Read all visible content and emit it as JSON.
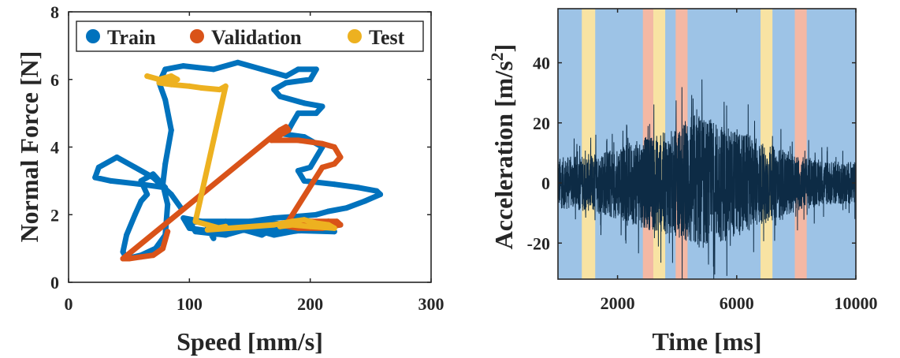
{
  "chart_data": [
    {
      "type": "scatter",
      "xlabel": "Speed [mm/s]",
      "ylabel": "Normal Force [N]",
      "xlim": [
        0,
        300
      ],
      "ylim": [
        0,
        8
      ],
      "xticks": [
        "0",
        "100",
        "200",
        "300"
      ],
      "yticks": [
        "0",
        "2",
        "4",
        "6",
        "8"
      ],
      "legend": {
        "placement": "top",
        "entries": [
          "Train",
          "Validation",
          "Test"
        ]
      },
      "series": [
        {
          "name": "Train",
          "color": "#0072BD",
          "points": [
            [
              93,
              2.2
            ],
            [
              85,
              2.6
            ],
            [
              70,
              3.1
            ],
            [
              55,
              3.4
            ],
            [
              40,
              3.7
            ],
            [
              25,
              3.4
            ],
            [
              22,
              3.1
            ],
            [
              35,
              3.0
            ],
            [
              60,
              2.9
            ],
            [
              80,
              2.8
            ],
            [
              70,
              3.2
            ],
            [
              60,
              3.0
            ],
            [
              65,
              2.6
            ],
            [
              60,
              2.4
            ],
            [
              55,
              2.0
            ],
            [
              48,
              1.4
            ],
            [
              45,
              0.9
            ],
            [
              48,
              0.7
            ],
            [
              60,
              0.8
            ],
            [
              72,
              1.0
            ],
            [
              80,
              1.4
            ],
            [
              82,
              2.3
            ],
            [
              78,
              2.9
            ],
            [
              80,
              3.5
            ],
            [
              85,
              4.5
            ],
            [
              80,
              5.4
            ],
            [
              75,
              5.9
            ],
            [
              80,
              6.3
            ],
            [
              95,
              6.4
            ],
            [
              120,
              6.3
            ],
            [
              140,
              6.5
            ],
            [
              160,
              6.3
            ],
            [
              180,
              6.1
            ],
            [
              190,
              6.3
            ],
            [
              205,
              6.3
            ],
            [
              200,
              6.0
            ],
            [
              180,
              5.9
            ],
            [
              170,
              5.7
            ],
            [
              175,
              5.5
            ],
            [
              195,
              5.3
            ],
            [
              210,
              5.2
            ],
            [
              205,
              5.0
            ],
            [
              190,
              5.0
            ],
            [
              185,
              4.7
            ],
            [
              182,
              4.5
            ],
            [
              175,
              4.4
            ],
            [
              195,
              4.3
            ],
            [
              210,
              4.0
            ],
            [
              200,
              3.4
            ],
            [
              190,
              3.3
            ],
            [
              195,
              3.0
            ],
            [
              220,
              2.9
            ],
            [
              240,
              2.8
            ],
            [
              255,
              2.7
            ],
            [
              258,
              2.6
            ],
            [
              245,
              2.4
            ],
            [
              230,
              2.2
            ],
            [
              215,
              2.1
            ],
            [
              205,
              2.0
            ],
            [
              190,
              1.95
            ],
            [
              170,
              1.9
            ],
            [
              150,
              1.8
            ],
            [
              130,
              1.8
            ],
            [
              110,
              1.8
            ],
            [
              95,
              1.9
            ],
            [
              100,
              1.6
            ],
            [
              120,
              1.5
            ],
            [
              140,
              1.6
            ],
            [
              160,
              1.4
            ],
            [
              170,
              1.6
            ],
            [
              190,
              1.7
            ],
            [
              215,
              1.8
            ],
            [
              225,
              1.7
            ],
            [
              205,
              1.6
            ],
            [
              180,
              1.7
            ],
            [
              160,
              1.8
            ],
            [
              140,
              1.7
            ],
            [
              120,
              1.75
            ],
            [
              100,
              1.8
            ],
            [
              105,
              1.5
            ],
            [
              130,
              1.4
            ],
            [
              150,
              1.6
            ],
            [
              160,
              1.5
            ],
            [
              170,
              1.4
            ],
            [
              185,
              1.5
            ],
            [
              205,
              1.6
            ],
            [
              220,
              1.5
            ],
            [
              115,
              1.6
            ],
            [
              120,
              1.3
            ]
          ]
        },
        {
          "name": "Validation",
          "color": "#D95319",
          "points": [
            [
              82,
              1.5
            ],
            [
              78,
              1.0
            ],
            [
              70,
              0.8
            ],
            [
              60,
              0.75
            ],
            [
              50,
              0.7
            ],
            [
              45,
              0.7
            ],
            [
              175,
              4.5
            ],
            [
              180,
              4.6
            ],
            [
              182,
              4.5
            ],
            [
              168,
              4.2
            ],
            [
              190,
              4.2
            ],
            [
              210,
              4.1
            ],
            [
              220,
              4.0
            ],
            [
              225,
              3.7
            ],
            [
              220,
              3.5
            ],
            [
              210,
              3.4
            ],
            [
              180,
              1.7
            ],
            [
              200,
              1.8
            ],
            [
              215,
              1.8
            ],
            [
              222,
              1.8
            ],
            [
              225,
              1.7
            ],
            [
              210,
              1.6
            ],
            [
              190,
              1.6
            ],
            [
              175,
              1.7
            ]
          ]
        },
        {
          "name": "Test",
          "color": "#EDB120",
          "points": [
            [
              65,
              6.1
            ],
            [
              75,
              6.0
            ],
            [
              85,
              6.1
            ],
            [
              90,
              6.0
            ],
            [
              85,
              5.95
            ],
            [
              75,
              5.9
            ],
            [
              85,
              5.85
            ],
            [
              100,
              5.8
            ],
            [
              110,
              5.75
            ],
            [
              125,
              5.7
            ],
            [
              130,
              5.8
            ],
            [
              105,
              1.8
            ],
            [
              115,
              1.7
            ],
            [
              125,
              1.6
            ],
            [
              130,
              1.65
            ],
            [
              115,
              1.55
            ],
            [
              170,
              1.7
            ],
            [
              185,
              1.8
            ],
            [
              195,
              1.85
            ],
            [
              205,
              1.75
            ],
            [
              215,
              1.7
            ],
            [
              220,
              1.6
            ],
            [
              200,
              1.65
            ],
            [
              185,
              1.7
            ],
            [
              175,
              1.65
            ]
          ]
        }
      ]
    },
    {
      "type": "line",
      "xlabel": "Time [ms]",
      "ylabel": "Acceleration [m/s²]",
      "ylabel_main": "Acceleration [m/s",
      "ylabel_sup": "2",
      "ylabel_end": "]",
      "xlim": [
        0,
        10000
      ],
      "ylim": [
        -32,
        58
      ],
      "xticks": [
        "2000",
        "6000",
        "10000"
      ],
      "xtick_values": [
        2000,
        6000,
        10000
      ],
      "yticks": [
        "-20",
        "0",
        "20",
        "40"
      ],
      "ytick_values": [
        -20,
        0,
        20,
        40
      ],
      "background_color": "#9DC3E6",
      "signal_color": "#0D2B45",
      "regions": [
        {
          "set": "Test",
          "start": 800,
          "end": 1250,
          "color": "#F8E3A3"
        },
        {
          "set": "Validation",
          "start": 2850,
          "end": 3200,
          "color": "#F4B8A4"
        },
        {
          "set": "Test",
          "start": 3200,
          "end": 3600,
          "color": "#F8E3A3"
        },
        {
          "set": "Validation",
          "start": 3950,
          "end": 4350,
          "color": "#F4B8A4"
        },
        {
          "set": "Test",
          "start": 6800,
          "end": 7200,
          "color": "#F8E3A3"
        },
        {
          "set": "Validation",
          "start": 7950,
          "end": 8350,
          "color": "#F4B8A4"
        }
      ],
      "envelope": [
        [
          0,
          14
        ],
        [
          1000,
          16
        ],
        [
          2000,
          20
        ],
        [
          3000,
          26
        ],
        [
          4000,
          30
        ],
        [
          4600,
          40
        ],
        [
          5000,
          36
        ],
        [
          6000,
          30
        ],
        [
          7000,
          22
        ],
        [
          8000,
          16
        ],
        [
          9000,
          12
        ],
        [
          10000,
          12
        ]
      ]
    }
  ]
}
